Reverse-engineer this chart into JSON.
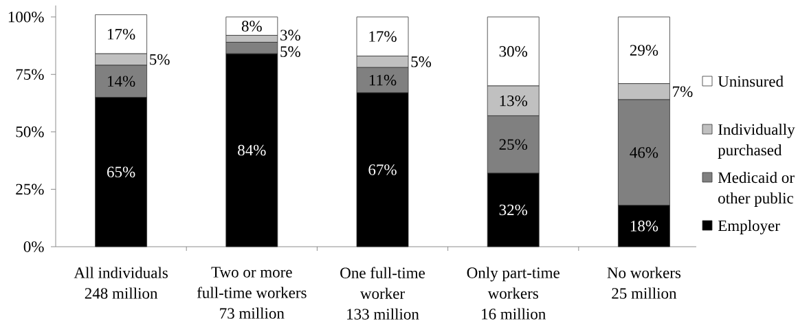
{
  "chart_data": {
    "type": "bar",
    "stacked": true,
    "categories": [
      "All individuals\n248 million",
      "Two or more full-time workers\n73 million",
      "One full-time worker\n133 million",
      "Only part-time workers\n16 million",
      "No workers\n25 million"
    ],
    "series": [
      {
        "name": "Employer",
        "color": "#000000",
        "values": [
          65,
          84,
          67,
          32,
          18
        ],
        "value_labels": [
          "65%",
          "84%",
          "67%",
          "32%",
          "18%"
        ]
      },
      {
        "name": "Medicaid or other public",
        "color": "#808080",
        "values": [
          14,
          5,
          11,
          25,
          46
        ],
        "value_labels": [
          "14%",
          "5%",
          "11%",
          "25%",
          "46%"
        ]
      },
      {
        "name": "Individually purchased",
        "color": "#c0c0c0",
        "values": [
          5,
          3,
          5,
          13,
          7
        ],
        "value_labels": [
          "5%",
          "3%",
          "5%",
          "13%",
          "7%"
        ]
      },
      {
        "name": "Uninsured",
        "color": "#ffffff",
        "values": [
          17,
          8,
          17,
          30,
          29
        ],
        "value_labels": [
          "17%",
          "8%",
          "17%",
          "30%",
          "29%"
        ]
      }
    ],
    "ylim": [
      0,
      105
    ],
    "yticks": [
      {
        "value": 0,
        "label": "0%"
      },
      {
        "value": 25,
        "label": "25%"
      },
      {
        "value": 50,
        "label": "50%"
      },
      {
        "value": 75,
        "label": "75%"
      },
      {
        "value": 100,
        "label": "100%"
      }
    ],
    "legend": "right"
  }
}
